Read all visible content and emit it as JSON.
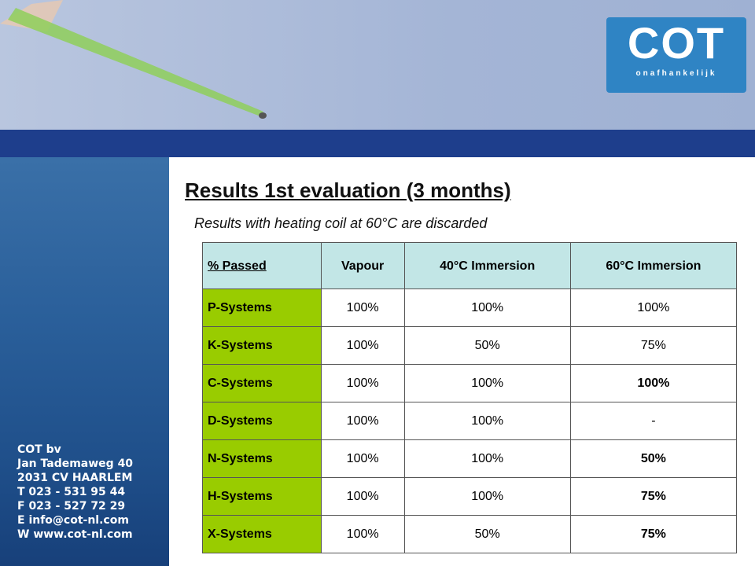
{
  "logo": {
    "name": "COT",
    "tagline": "onafhankelijk"
  },
  "title": "Results 1st evaluation (3 months)",
  "subtitle": "Results with heating coil at 60°C are discarded",
  "table": {
    "header": [
      "% Passed",
      "Vapour",
      "40°C Immersion",
      "60°C Immersion"
    ],
    "rows": [
      [
        "P-Systems",
        "100%",
        "100%",
        "100%"
      ],
      [
        "K-Systems",
        "100%",
        "50%",
        "75%"
      ],
      [
        "C-Systems",
        "100%",
        "100%",
        "100%"
      ],
      [
        "D-Systems",
        "100%",
        "100%",
        "-"
      ],
      [
        "N-Systems",
        "100%",
        "100%",
        "50%"
      ],
      [
        "H-Systems",
        "100%",
        "100%",
        "75%"
      ],
      [
        "X-Systems",
        "100%",
        "50%",
        "75%"
      ]
    ],
    "bold_last_column": [
      false,
      false,
      true,
      false,
      true,
      true,
      true
    ]
  },
  "contact": [
    "COT bv",
    "Jan Tademaweg 40",
    "2031 CV  HAARLEM",
    "T  023 - 531 95 44",
    "F  023 - 527 72 29",
    "E  info@cot-nl.com",
    "W www.cot-nl.com"
  ]
}
